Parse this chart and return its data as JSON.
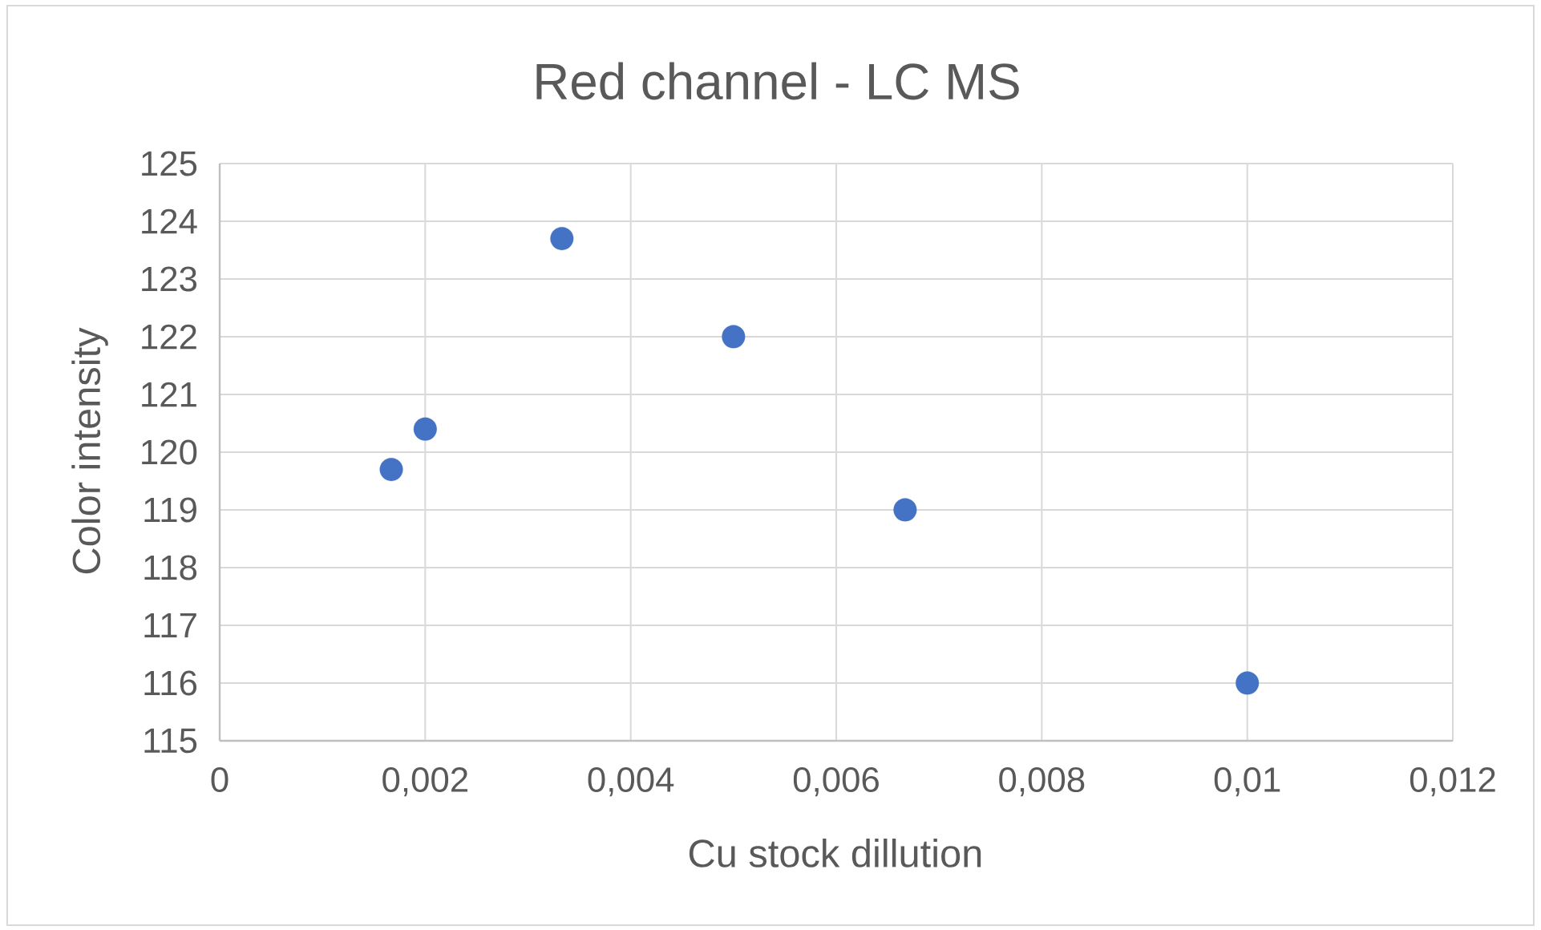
{
  "chart_data": {
    "type": "scatter",
    "title": "Red channel - LC MS",
    "xlabel": "Cu stock dillution",
    "ylabel": "Color intensity",
    "x": [
      0.00167,
      0.002,
      0.00333,
      0.005,
      0.00667,
      0.01
    ],
    "values": [
      119.7,
      120.4,
      123.7,
      122,
      119,
      116
    ],
    "color": "#4472c4",
    "marker": "circle",
    "xlim": [
      0,
      0.012
    ],
    "ylim": [
      115,
      125
    ],
    "xticks": [
      0,
      {
        "value": 0.002,
        "label": "0,002"
      },
      {
        "value": 0.004,
        "label": "0,004"
      },
      {
        "value": 0.006,
        "label": "0,006"
      },
      {
        "value": 0.008,
        "label": "0,008"
      },
      {
        "value": 0.01,
        "label": "0,01"
      },
      {
        "value": 0.012,
        "label": "0,012"
      }
    ],
    "yticks": [
      115,
      116,
      117,
      118,
      119,
      120,
      121,
      122,
      123,
      124,
      125
    ],
    "grid": true
  }
}
